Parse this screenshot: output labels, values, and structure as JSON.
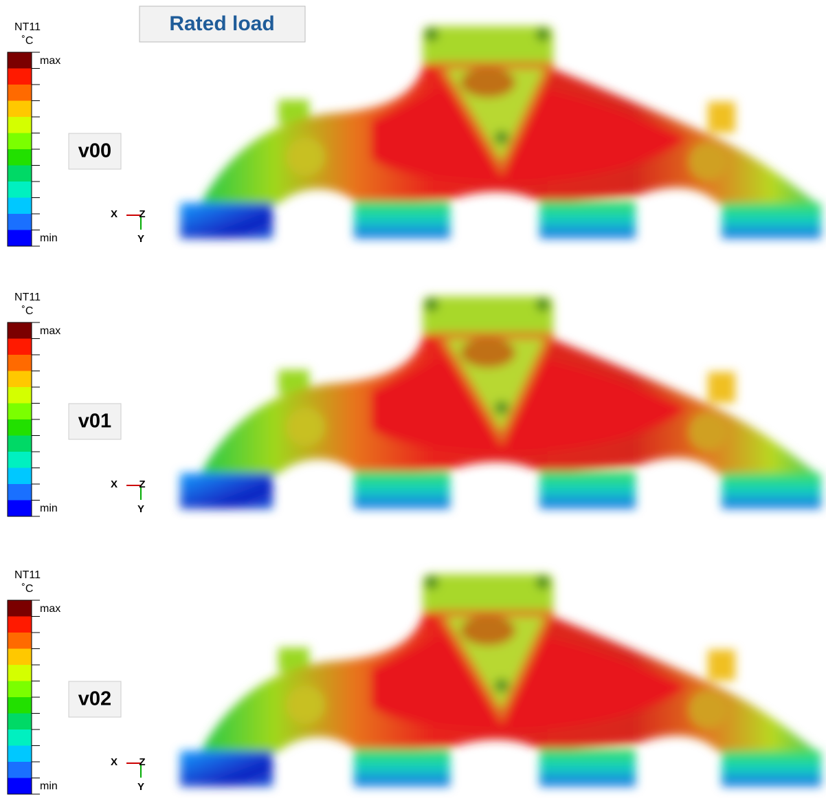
{
  "title": "Rated load",
  "panels": [
    {
      "version": "v00",
      "legend": {
        "title": "NT11",
        "unit": "˚C",
        "max": "max",
        "min": "min"
      },
      "triad": {
        "x": "X",
        "z": "Z",
        "y": "Y"
      }
    },
    {
      "version": "v01",
      "legend": {
        "title": "NT11",
        "unit": "˚C",
        "max": "max",
        "min": "min"
      },
      "triad": {
        "x": "X",
        "z": "Z",
        "y": "Y"
      }
    },
    {
      "version": "v02",
      "legend": {
        "title": "NT11",
        "unit": "˚C",
        "max": "max",
        "min": "min"
      },
      "triad": {
        "x": "X",
        "z": "Z",
        "y": "Y"
      }
    }
  ]
}
